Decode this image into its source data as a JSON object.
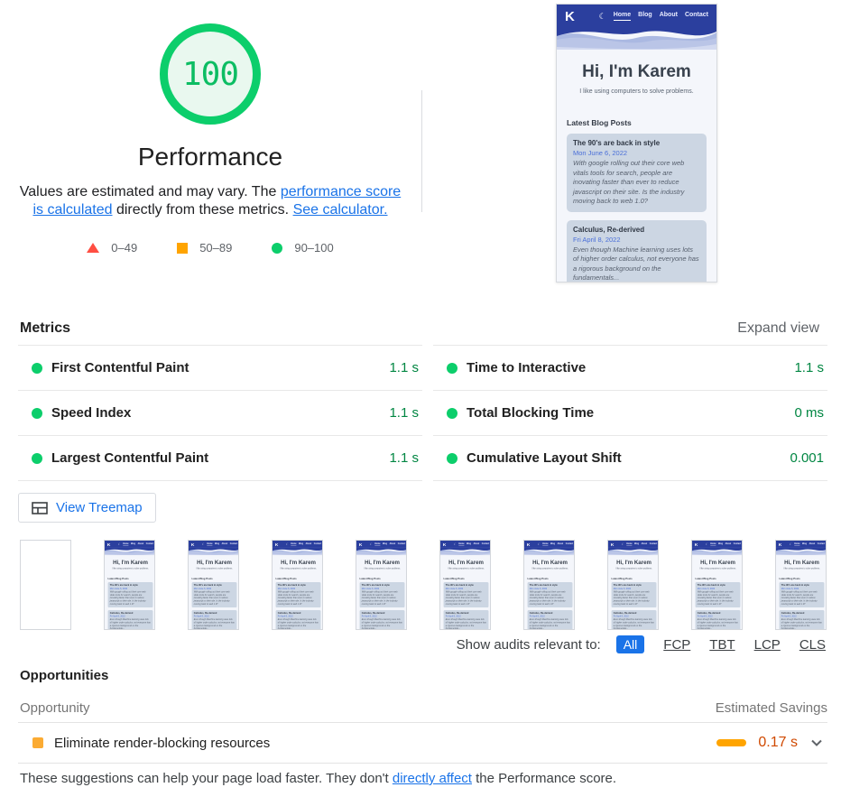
{
  "performance_summary": {
    "score": "100",
    "title": "Performance",
    "description": {
      "part1": "Values are estimated and may vary. The ",
      "link1": "performance score is calculated",
      "part2": " directly from these metrics. ",
      "link2": "See calculator."
    },
    "legend": [
      {
        "shape": "triangle",
        "color": "#ff4e42",
        "range": "0–49"
      },
      {
        "shape": "square",
        "color": "#ffa400",
        "range": "50–89"
      },
      {
        "shape": "circle",
        "color": "#0cce6b",
        "range": "90–100"
      }
    ]
  },
  "page_preview": {
    "logo": "K",
    "moon_icon": "☾",
    "nav": [
      "Home",
      "Blog",
      "About",
      "Contact"
    ],
    "active_nav": "Home",
    "heading": "Hi, I'm Karem",
    "tagline": "I like using computers to solve problems.",
    "blog_section_title": "Latest Blog Posts",
    "posts": [
      {
        "title": "The 90's are back in style",
        "date": "Mon June 6, 2022",
        "excerpt": "With google rolling out their core web vitals tools for search, people are inovating faster than ever to reduce javascript on their site. Is the industry moving back to web 1.0?"
      },
      {
        "title": "Calculus, Re-derived",
        "date": "Fri April 8, 2022",
        "excerpt": "Even though Machine learning uses lots of higher order calculus, not everyone has a rigorous background on the fundamentals..."
      }
    ]
  },
  "metrics": {
    "section_title": "Metrics",
    "expand_label": "Expand view",
    "items": [
      {
        "name": "First Contentful Paint",
        "value": "1.1 s",
        "rating": "good"
      },
      {
        "name": "Speed Index",
        "value": "1.1 s",
        "rating": "good"
      },
      {
        "name": "Largest Contentful Paint",
        "value": "1.1 s",
        "rating": "good"
      },
      {
        "name": "Time to Interactive",
        "value": "1.1 s",
        "rating": "good"
      },
      {
        "name": "Total Blocking Time",
        "value": "0 ms",
        "rating": "good"
      },
      {
        "name": "Cumulative Layout Shift",
        "value": "0.001",
        "rating": "good"
      }
    ]
  },
  "treemap": {
    "label": "View Treemap"
  },
  "filmstrip": {
    "frame_count": 10,
    "first_frame_blank": true
  },
  "audit_filter": {
    "label": "Show audits relevant to:",
    "chips": [
      {
        "label": "All",
        "selected": true
      },
      {
        "label": "FCP",
        "selected": false
      },
      {
        "label": "TBT",
        "selected": false
      },
      {
        "label": "LCP",
        "selected": false
      },
      {
        "label": "CLS",
        "selected": false
      }
    ]
  },
  "opportunities": {
    "section_title": "Opportunities",
    "columns": {
      "opportunity": "Opportunity",
      "savings": "Estimated Savings"
    },
    "rows": [
      {
        "title": "Eliminate render-blocking resources",
        "savings": "0.17 s",
        "rating": "average"
      }
    ],
    "footer": {
      "part1": "These suggestions can help your page load faster. They don't ",
      "link": "directly affect",
      "part2": " the Performance score."
    }
  },
  "colors": {
    "pass": "#0cce6b",
    "pass_text": "#018642",
    "average": "#ffa400",
    "fail": "#ff4e42",
    "link_blue": "#1a73e8",
    "savings_text": "#d04900",
    "preview_header_blue": "#2b3f9e"
  }
}
